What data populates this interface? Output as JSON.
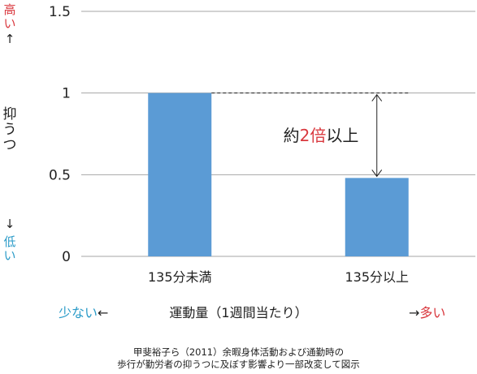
{
  "chart_data": {
    "type": "bar",
    "categories": [
      "135分未満",
      "135分以上"
    ],
    "values": [
      1.0,
      0.48
    ],
    "ylim": [
      0,
      1.5
    ],
    "yticks": [
      "0",
      "0.5",
      "1",
      "1.5"
    ],
    "ytick_values": [
      0,
      0.5,
      1,
      1.5
    ],
    "bar_color": "#5b9bd5",
    "grid": true,
    "annotation": {
      "prefix": "約",
      "number": "2倍",
      "suffix": "以上",
      "number_color": "#d9383e"
    }
  },
  "y_axis": {
    "high": "高い",
    "high_arrow": "↑",
    "label": "抑うつ",
    "low_arrow": "↓",
    "low": "低い"
  },
  "x_axis": {
    "title": "運動量（1週間当たり）",
    "left_text": "少ない",
    "left_arrow": "←",
    "right_arrow": "→",
    "right_text": "多い"
  },
  "source": {
    "line1": "甲斐裕子ら（2011）余暇身体活動および通勤時の",
    "line2": "歩行が勤労者の抑うつに及ぼす影響より一部改変して図示"
  },
  "colors": {
    "high": "#d9383e",
    "low": "#2b9bc8",
    "grid": "#a6a6a6"
  }
}
